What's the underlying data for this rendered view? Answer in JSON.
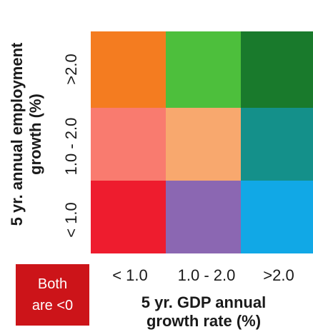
{
  "chart_data": {
    "type": "heatmap",
    "x_categories": [
      "< 1.0",
      "1.0 - 2.0",
      ">2.0"
    ],
    "y_categories": [
      "< 1.0",
      "1.0 - 2.0",
      ">2.0"
    ],
    "xlabel_lines": [
      "5 yr. GDP annual",
      "growth rate (%)"
    ],
    "ylabel_lines": [
      "5 yr. annual employment",
      "growth (%)"
    ],
    "cells": [
      {
        "x": "< 1.0",
        "y": ">2.0",
        "color": "#f47c20"
      },
      {
        "x": "1.0 - 2.0",
        "y": ">2.0",
        "color": "#4dbf3c"
      },
      {
        "x": ">2.0",
        "y": ">2.0",
        "color": "#197a2c"
      },
      {
        "x": "< 1.0",
        "y": "1.0 - 2.0",
        "color": "#f97b6f"
      },
      {
        "x": "1.0 - 2.0",
        "y": "1.0 - 2.0",
        "color": "#f8a86e"
      },
      {
        "x": ">2.0",
        "y": "1.0 - 2.0",
        "color": "#14908a"
      },
      {
        "x": "< 1.0",
        "y": "< 1.0",
        "color": "#ee1c2e"
      },
      {
        "x": "1.0 - 2.0",
        "y": "< 1.0",
        "color": "#8b67b2"
      },
      {
        "x": ">2.0",
        "y": "< 1.0",
        "color": "#11a8e6"
      }
    ],
    "legend": {
      "lines": [
        "Both",
        "are <0"
      ],
      "color": "#cc1419"
    }
  }
}
